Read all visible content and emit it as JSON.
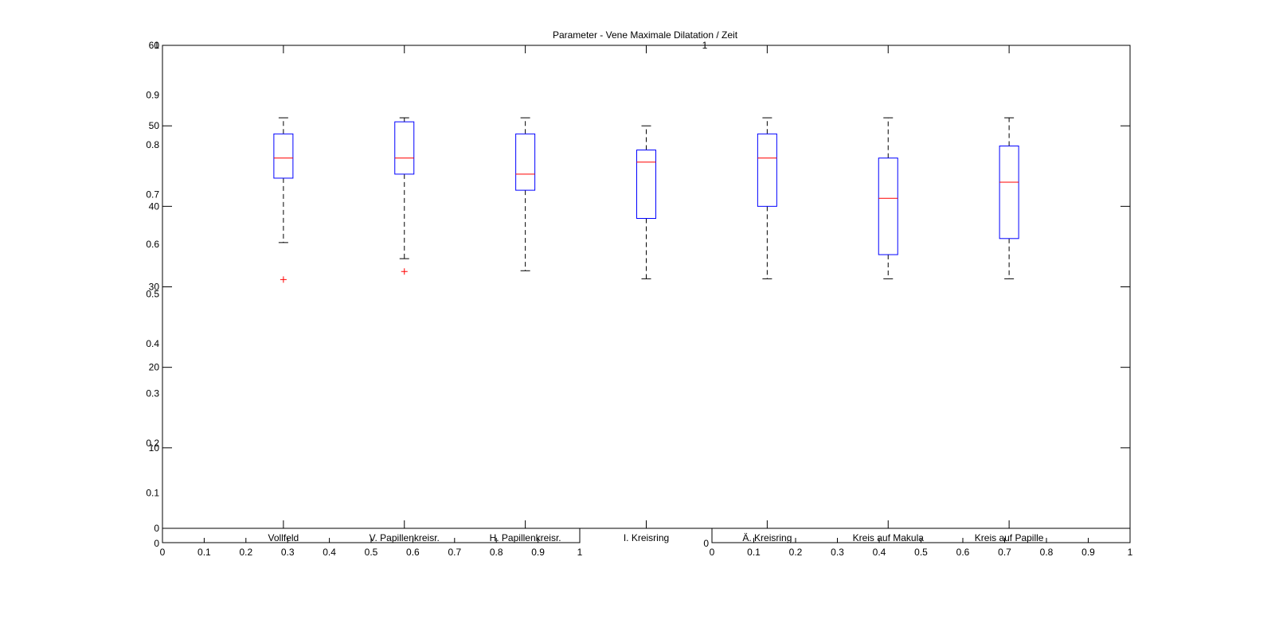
{
  "chart_data": {
    "type": "box",
    "title": "Parameter - Vene Maximale Dilatation / Zeit",
    "xlabel": "",
    "ylabel": "",
    "categories": [
      "Vollfeld",
      "V. Papillenkreisr.",
      "H. Papillenkreisr.",
      "I. Kreisring",
      "Ä. Kreisring",
      "Kreis auf Makula",
      "Kreis auf Papille"
    ],
    "ylim": [
      0,
      60
    ],
    "yticks": [
      "0",
      "10",
      "20",
      "30",
      "40",
      "50",
      "60"
    ],
    "boxes": [
      {
        "category": "Vollfeld",
        "whisker_low": 35.5,
        "q1": 43.5,
        "median": 46,
        "q3": 49,
        "whisker_high": 51,
        "outliers": [
          30.9
        ]
      },
      {
        "category": "V. Papillenkreisr.",
        "whisker_low": 33.5,
        "q1": 44,
        "median": 46,
        "q3": 50.5,
        "whisker_high": 51,
        "outliers": [
          31.9
        ]
      },
      {
        "category": "H. Papillenkreisr.",
        "whisker_low": 32,
        "q1": 42,
        "median": 44,
        "q3": 49,
        "whisker_high": 51,
        "outliers": []
      },
      {
        "category": "I. Kreisring",
        "whisker_low": 31,
        "q1": 38.5,
        "median": 45.5,
        "q3": 47,
        "whisker_high": 50,
        "outliers": []
      },
      {
        "category": "Ä. Kreisring",
        "whisker_low": 31,
        "q1": 40,
        "median": 46,
        "q3": 49,
        "whisker_high": 51,
        "outliers": []
      },
      {
        "category": "Kreis auf Makula",
        "whisker_low": 31,
        "q1": 34,
        "median": 41,
        "q3": 46,
        "whisker_high": 51,
        "outliers": []
      },
      {
        "category": "Kreis auf Papille",
        "whisker_low": 31,
        "q1": 36,
        "median": 43,
        "q3": 47.5,
        "whisker_high": 51,
        "outliers": []
      }
    ],
    "colors": {
      "box": "#0000ff",
      "median": "#ff0000",
      "whisker": "#000000",
      "outlier": "#ff0000"
    },
    "grid": false,
    "legend": "none",
    "overlay_axes": {
      "left_ticks": [
        "0",
        "0.1",
        "0.2",
        "0.3",
        "0.4",
        "0.5",
        "0.6",
        "0.7",
        "0.8",
        "0.9",
        "1"
      ],
      "left_zero_label": "0",
      "top_label": "1",
      "bottom_left_ticks": [
        "0",
        "0.1",
        "0.2",
        "0.3",
        "0.4",
        "0.5",
        "0.6",
        "0.7",
        "0.8",
        "0.9",
        "1"
      ],
      "bottom_right_ticks": [
        "0",
        "0.1",
        "0.2",
        "0.3",
        "0.4",
        "0.5",
        "0.6",
        "0.7",
        "0.8",
        "0.9",
        "1"
      ],
      "bottom_right_zero_label": "0"
    }
  }
}
